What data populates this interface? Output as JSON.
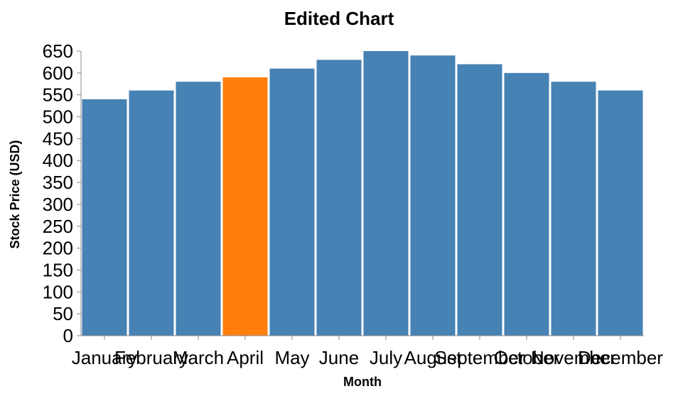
{
  "chart_data": {
    "type": "bar",
    "title": "Edited Chart",
    "xlabel": "Month",
    "ylabel": "Stock Price (USD)",
    "categories": [
      "January",
      "February",
      "March",
      "April",
      "May",
      "June",
      "July",
      "August",
      "September",
      "October",
      "November",
      "December"
    ],
    "values": [
      540,
      560,
      580,
      590,
      610,
      630,
      650,
      640,
      620,
      600,
      580,
      560
    ],
    "highlight_index": 3,
    "ylim": [
      0,
      650
    ],
    "yticks": [
      0,
      50,
      100,
      150,
      200,
      250,
      300,
      350,
      400,
      450,
      500,
      550,
      600,
      650
    ],
    "grid": false,
    "colors": {
      "bar": "#4682b4",
      "highlight": "#ff7f0e",
      "axis": "#888888"
    }
  }
}
